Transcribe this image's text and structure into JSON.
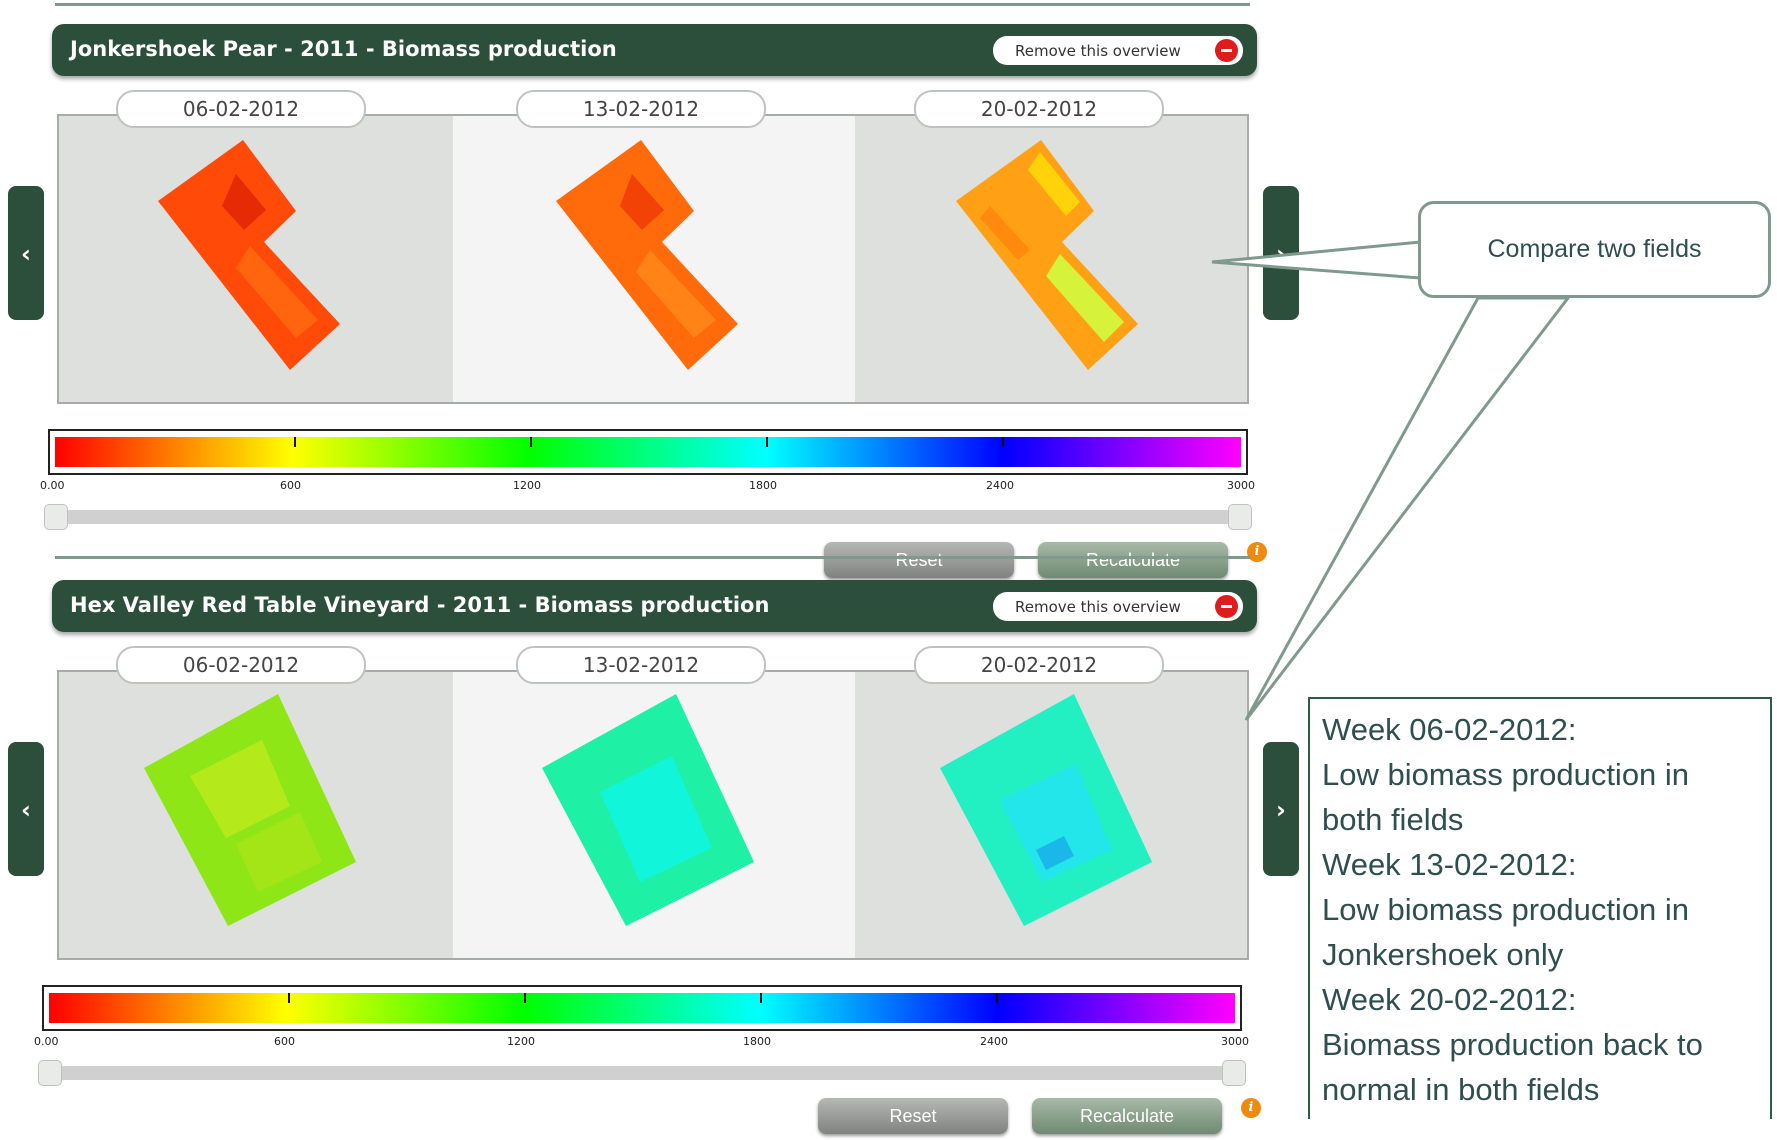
{
  "overviews": [
    {
      "title": "Jonkershoek Pear - 2011 - Biomass production",
      "remove_label": "Remove this overview",
      "dates": [
        "06-02-2012",
        "13-02-2012",
        "20-02-2012"
      ],
      "scale_labels": [
        "0.00",
        "600",
        "1200",
        "1800",
        "2400",
        "3000"
      ],
      "reset_label": "Reset",
      "recalc_label": "Recalculate"
    },
    {
      "title": "Hex Valley Red Table Vineyard - 2011 - Biomass production",
      "remove_label": "Remove this overview",
      "dates": [
        "06-02-2012",
        "13-02-2012",
        "20-02-2012"
      ],
      "scale_labels": [
        "0.00",
        "600",
        "1200",
        "1800",
        "2400",
        "3000"
      ],
      "reset_label": "Reset",
      "recalc_label": "Recalculate"
    }
  ],
  "nav": {
    "prev": "‹",
    "next": "›"
  },
  "info_icon": "i",
  "callout": "Compare two fields",
  "notes": [
    "Week 06-02-2012:",
    "Low biomass production in",
    "both fields",
    "Week 13-02-2012:",
    "Low biomass production in",
    "Jonkershoek only",
    "Week 20-02-2012:",
    "Biomass production back to",
    "normal in both fields"
  ],
  "colors": {
    "header": "#2c4f3b",
    "accent_line": "#7f9a8d",
    "scale": [
      "#ff0000",
      "#ffff00",
      "#00ff00",
      "#00ffff",
      "#0000ff",
      "#ff00ff"
    ]
  }
}
